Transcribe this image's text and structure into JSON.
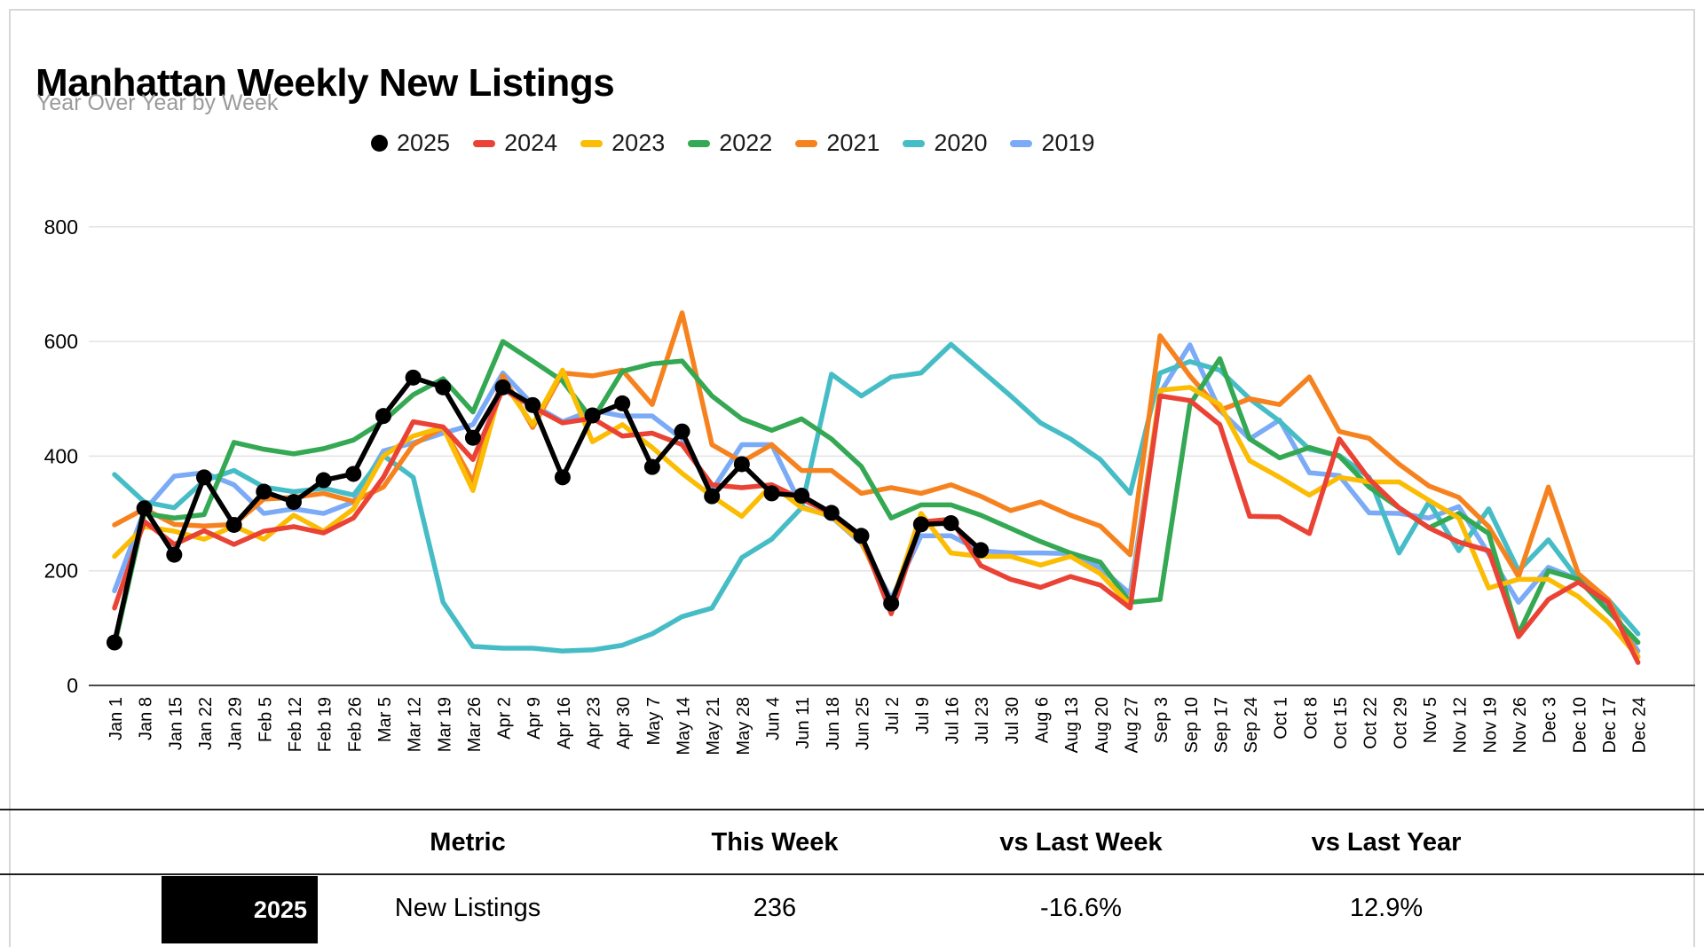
{
  "title": "Manhattan Weekly New Listings",
  "subtitle": "Year Over Year by Week",
  "chart_data": {
    "type": "line",
    "title": "Manhattan Weekly New Listings",
    "subtitle": "Year Over Year by Week",
    "xlabel": "",
    "ylabel": "",
    "ylim": [
      0,
      800
    ],
    "yticks": [
      0,
      200,
      400,
      600,
      800
    ],
    "grid": true,
    "legend_position": "top",
    "x_labels": [
      "Jan 1",
      "Jan 8",
      "Jan 15",
      "Jan 22",
      "Jan 29",
      "Feb 5",
      "Feb 12",
      "Feb 19",
      "Feb 26",
      "Mar 5",
      "Mar 12",
      "Mar 19",
      "Mar 26",
      "Apr 2",
      "Apr 9",
      "Apr 16",
      "Apr 23",
      "Apr 30",
      "May 7",
      "May 14",
      "May 21",
      "May 28",
      "Jun 4",
      "Jun 11",
      "Jun 18",
      "Jun 25",
      "Jul 2",
      "Jul 9",
      "Jul 16",
      "Jul 23",
      "Jul 30",
      "Aug 6",
      "Aug 13",
      "Aug 20",
      "Aug 27",
      "Sep 3",
      "Sep 10",
      "Sep 17",
      "Sep 24",
      "Oct 1",
      "Oct 8",
      "Oct 15",
      "Oct 22",
      "Oct 29",
      "Nov 5",
      "Nov 12",
      "Nov 19",
      "Nov 26",
      "Dec 3",
      "Dec 10",
      "Dec 17",
      "Dec 24"
    ],
    "series": [
      {
        "name": "2025",
        "color": "#000000",
        "point_markers": true,
        "values": [
          75,
          309,
          228,
          363,
          280,
          338,
          320,
          358,
          369,
          470,
          537,
          520,
          432,
          520,
          489,
          363,
          471,
          492,
          381,
          443,
          330,
          386,
          335,
          331,
          301,
          261,
          143,
          281,
          283,
          236,
          null,
          null,
          null,
          null,
          null,
          null,
          null,
          null,
          null,
          null,
          null,
          null,
          null,
          null,
          null,
          null,
          null,
          null,
          null,
          null,
          null,
          null
        ]
      },
      {
        "name": "2024",
        "color": "#ea4335",
        "point_markers": false,
        "values": [
          135,
          286,
          246,
          270,
          246,
          269,
          277,
          266,
          292,
          363,
          460,
          451,
          394,
          517,
          486,
          458,
          466,
          435,
          440,
          420,
          350,
          345,
          350,
          325,
          300,
          260,
          125,
          285,
          290,
          209,
          185,
          171,
          190,
          175,
          135,
          505,
          497,
          455,
          295,
          294,
          265,
          430,
          360,
          310,
          275,
          250,
          235,
          85,
          150,
          180,
          145,
          40
        ]
      },
      {
        "name": "2023",
        "color": "#fbbc04",
        "point_markers": false,
        "values": [
          225,
          277,
          269,
          255,
          278,
          255,
          297,
          269,
          308,
          400,
          435,
          450,
          340,
          530,
          455,
          550,
          425,
          455,
          415,
          370,
          330,
          295,
          350,
          310,
          295,
          250,
          140,
          300,
          231,
          225,
          225,
          210,
          225,
          195,
          140,
          515,
          520,
          490,
          392,
          363,
          332,
          363,
          355,
          355,
          323,
          292,
          170,
          185,
          185,
          155,
          110,
          50
        ]
      },
      {
        "name": "2022",
        "color": "#34a853",
        "point_markers": false,
        "values": [
          70,
          300,
          292,
          298,
          424,
          412,
          404,
          413,
          428,
          461,
          507,
          535,
          477,
          600,
          566,
          531,
          463,
          548,
          561,
          566,
          505,
          465,
          445,
          465,
          430,
          382,
          292,
          315,
          315,
          297,
          274,
          251,
          231,
          215,
          145,
          150,
          490,
          570,
          430,
          397,
          415,
          400,
          346,
          310,
          275,
          300,
          265,
          90,
          200,
          185,
          130,
          75
        ]
      },
      {
        "name": "2021",
        "color": "#f6821f",
        "point_markers": false,
        "values": [
          280,
          308,
          281,
          278,
          281,
          325,
          328,
          335,
          321,
          346,
          420,
          450,
          355,
          540,
          450,
          545,
          540,
          550,
          490,
          650,
          420,
          390,
          420,
          375,
          375,
          335,
          345,
          335,
          350,
          330,
          305,
          320,
          297,
          278,
          228,
          610,
          540,
          480,
          500,
          490,
          538,
          443,
          431,
          386,
          348,
          328,
          277,
          190,
          346,
          195,
          150,
          50
        ]
      },
      {
        "name": "2020",
        "color": "#46bdc6",
        "point_markers": false,
        "values": [
          368,
          320,
          310,
          357,
          375,
          346,
          338,
          344,
          332,
          401,
          363,
          145,
          68,
          65,
          65,
          60,
          62,
          70,
          90,
          120,
          135,
          223,
          255,
          310,
          543,
          505,
          538,
          545,
          595,
          550,
          505,
          458,
          430,
          394,
          335,
          545,
          565,
          550,
          500,
          461,
          412,
          401,
          363,
          231,
          320,
          235,
          308,
          200,
          254,
          185,
          150,
          90
        ]
      },
      {
        "name": "2019",
        "color": "#7baaf7",
        "point_markers": false,
        "values": [
          165,
          305,
          365,
          371,
          350,
          300,
          308,
          300,
          320,
          409,
          423,
          440,
          455,
          545,
          490,
          460,
          480,
          470,
          470,
          430,
          340,
          420,
          420,
          312,
          294,
          248,
          151,
          261,
          261,
          235,
          231,
          231,
          230,
          205,
          160,
          510,
          594,
          480,
          430,
          463,
          371,
          366,
          301,
          300,
          292,
          312,
          230,
          145,
          206,
          185,
          141,
          60
        ]
      }
    ]
  },
  "legend": {
    "items": [
      {
        "label": "2025",
        "color": "#000000",
        "marker": "circle"
      },
      {
        "label": "2024",
        "color": "#ea4335",
        "marker": "dash"
      },
      {
        "label": "2023",
        "color": "#fbbc04",
        "marker": "dash"
      },
      {
        "label": "2022",
        "color": "#34a853",
        "marker": "dash"
      },
      {
        "label": "2021",
        "color": "#f6821f",
        "marker": "dash"
      },
      {
        "label": "2020",
        "color": "#46bdc6",
        "marker": "dash"
      },
      {
        "label": "2019",
        "color": "#7baaf7",
        "marker": "dash"
      }
    ]
  },
  "table": {
    "headers": [
      "Metric",
      "This Week",
      "vs Last Week",
      "vs Last Year"
    ],
    "row": {
      "year": "2025",
      "metric": "New Listings",
      "this_week": "236",
      "vs_last_week": "-16.6%",
      "vs_last_year": "12.9%"
    },
    "year_box_color": "#000000"
  }
}
